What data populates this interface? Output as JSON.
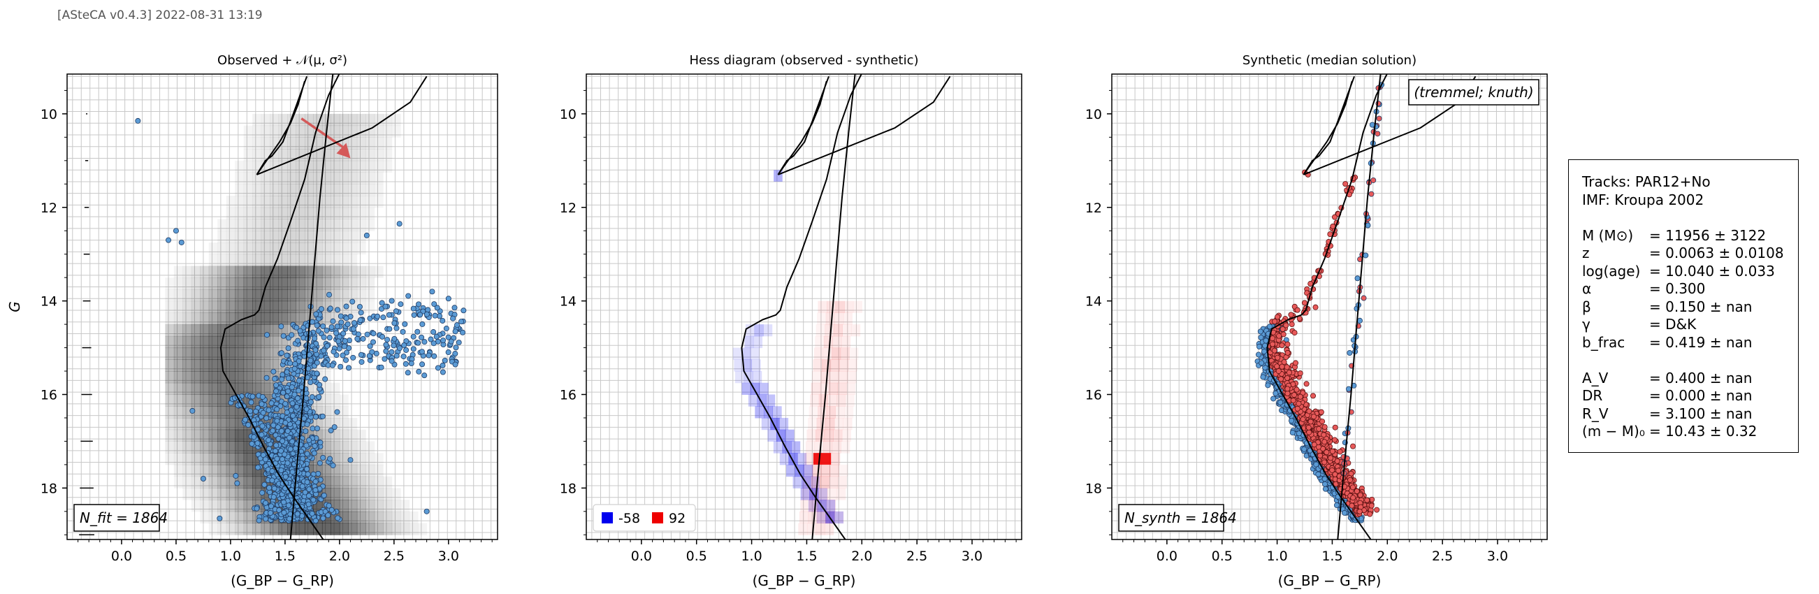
{
  "header": "[ASteCA v0.4.3] 2022-08-31 13:19",
  "panels": [
    {
      "title": "Observed + 𝒩(μ, σ²)",
      "xlabel": "(G_BP − G_RP)",
      "ylabel": "G",
      "box_label": "N_fit = 1864"
    },
    {
      "title": "Hess diagram (observed - synthetic)",
      "xlabel": "(G_BP − G_RP)",
      "ylabel": "",
      "legend": [
        {
          "label": "-58",
          "color": "#0000ee"
        },
        {
          "label": "92",
          "color": "#ee0000"
        }
      ]
    },
    {
      "title": "Synthetic (median solution)",
      "xlabel": "(G_BP − G_RP)",
      "ylabel": "",
      "box_label": "N_synth = 1864",
      "corner_label": "(tremmel; knuth)"
    }
  ],
  "info_box": {
    "lines": [
      "Tracks: PAR12+No",
      "IMF: Kroupa 2002"
    ],
    "params": [
      {
        "name": "M (M⊙)",
        "value": "= 11956 ± 3122"
      },
      {
        "name": "z",
        "value": "= 0.0063 ± 0.0108"
      },
      {
        "name": "log(age)",
        "value": "= 10.040 ± 0.033"
      },
      {
        "name": "α",
        "value": "= 0.300"
      },
      {
        "name": "β",
        "value": "= 0.150 ± nan"
      },
      {
        "name": "γ",
        "value": "= D&K"
      },
      {
        "name": "b_frac",
        "value": "= 0.419 ± nan"
      }
    ],
    "params2": [
      {
        "name": "A_V",
        "value": "= 0.400 ± nan"
      },
      {
        "name": "DR",
        "value": "= 0.000 ± nan"
      },
      {
        "name": "R_V",
        "value": "= 3.100 ± nan"
      },
      {
        "name": "(m − M)₀",
        "value": "= 10.43 ± 0.32"
      }
    ]
  },
  "chart_data": {
    "type": "scatter",
    "x_label": "(G_BP − G_RP)",
    "y_label": "G",
    "xlim": [
      -0.5,
      3.45
    ],
    "ylim": [
      19.1,
      9.15
    ],
    "y_inverted": true,
    "xticks": [
      "0.0",
      "0.5",
      "1.0",
      "1.5",
      "2.0",
      "2.5",
      "3.0"
    ],
    "xtick_values": [
      0.0,
      0.5,
      1.0,
      1.5,
      2.0,
      2.5,
      3.0
    ],
    "yticks": [
      "10",
      "12",
      "14",
      "16",
      "18"
    ],
    "ytick_values": [
      10,
      12,
      14,
      16,
      18
    ],
    "grid": true,
    "isochrone": [
      [
        2.05,
        8.9
      ],
      [
        1.9,
        9.6
      ],
      [
        1.78,
        10.4
      ],
      [
        1.68,
        11.4
      ],
      [
        1.55,
        12.3
      ],
      [
        1.43,
        13.1
      ],
      [
        1.32,
        13.7
      ],
      [
        1.26,
        14.2
      ],
      [
        1.22,
        14.3
      ],
      [
        1.1,
        14.4
      ],
      [
        0.95,
        14.6
      ],
      [
        0.91,
        15.0
      ],
      [
        0.93,
        15.5
      ],
      [
        1.05,
        16.0
      ],
      [
        1.17,
        16.5
      ],
      [
        1.3,
        17.1
      ],
      [
        1.44,
        17.7
      ],
      [
        1.58,
        18.2
      ],
      [
        1.7,
        18.6
      ],
      [
        1.85,
        19.1
      ]
    ],
    "isochrone_rgb": [
      [
        1.7,
        9.2
      ],
      [
        1.56,
        10.1
      ],
      [
        1.48,
        10.6
      ],
      [
        1.38,
        10.9
      ],
      [
        1.32,
        11.0
      ],
      [
        1.24,
        11.3
      ],
      [
        1.33,
        11.0
      ],
      [
        1.45,
        10.6
      ],
      [
        1.55,
        10.2
      ],
      [
        1.62,
        9.8
      ],
      [
        1.68,
        9.3
      ]
    ],
    "isochrone_binary": [
      [
        1.95,
        8.9
      ],
      [
        1.88,
        10.4
      ],
      [
        1.82,
        11.8
      ],
      [
        1.77,
        13.2
      ],
      [
        1.72,
        14.6
      ],
      [
        1.67,
        16.0
      ],
      [
        1.61,
        17.5
      ],
      [
        1.55,
        19.1
      ]
    ],
    "isochrone_agb": [
      [
        1.24,
        11.3
      ],
      [
        2.3,
        10.3
      ],
      [
        2.65,
        9.75
      ],
      [
        2.8,
        9.2
      ]
    ],
    "arrow": {
      "from": [
        1.65,
        10.1
      ],
      "to": [
        2.1,
        10.95
      ],
      "color": "#d55a5a"
    },
    "observed_points_color": "#5b9bd5",
    "synthetic_points_color": "#e85a5a",
    "hess_legend": [
      {
        "label": "-58",
        "color": "#0000ee"
      },
      {
        "label": "92",
        "color": "#ee0000"
      }
    ]
  }
}
